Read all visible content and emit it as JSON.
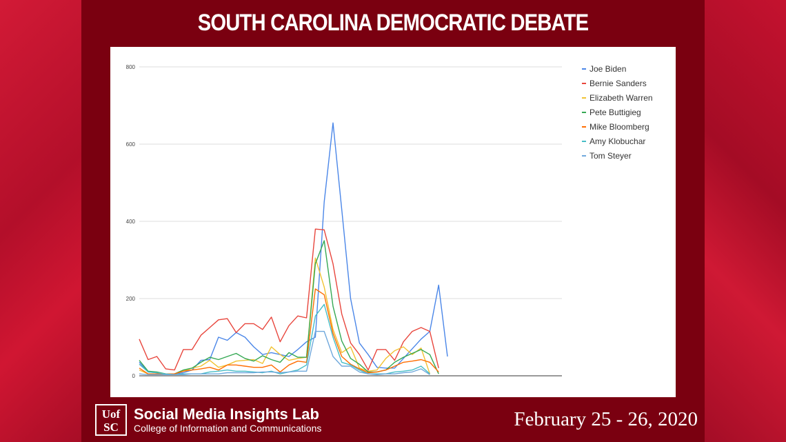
{
  "header": {
    "title": "SOUTH CAROLINA DEMOCRATIC DEBATE"
  },
  "footer": {
    "logo_text": "UofSC",
    "lab_name": "Social Media Insights Lab",
    "lab_subtitle": "College of Information and Communications",
    "date": "February 25 - 26, 2020"
  },
  "chart_data": {
    "type": "line",
    "title": "",
    "xlabel": "",
    "ylabel": "",
    "ylim": [
      0,
      800
    ],
    "yticks": [
      0,
      200,
      400,
      600,
      800
    ],
    "grid": true,
    "legend_position": "right",
    "x": [
      1,
      2,
      3,
      4,
      5,
      6,
      7,
      8,
      9,
      10,
      11,
      12,
      13,
      14,
      15,
      16,
      17,
      18,
      19,
      20,
      21,
      22,
      23,
      24,
      25,
      26,
      27,
      28,
      29,
      30,
      31,
      32,
      33,
      34,
      35,
      36,
      37,
      38,
      39,
      40,
      41,
      42,
      43,
      44,
      45,
      46,
      47,
      48,
      49
    ],
    "series": [
      {
        "name": "Joe Biden",
        "color": "#4a86e8",
        "values": [
          35,
          10,
          8,
          5,
          5,
          8,
          15,
          40,
          42,
          100,
          92,
          112,
          100,
          75,
          55,
          60,
          55,
          50,
          68,
          88,
          100,
          450,
          655,
          430,
          200,
          85,
          55,
          22,
          20,
          20,
          45,
          70,
          95,
          115,
          235,
          50,
          null,
          null,
          null,
          null,
          null,
          null,
          null,
          null,
          null,
          null,
          null,
          null,
          null
        ]
      },
      {
        "name": "Bernie Sanders",
        "color": "#e8453c",
        "values": [
          95,
          42,
          50,
          18,
          15,
          68,
          68,
          105,
          125,
          145,
          148,
          112,
          135,
          135,
          120,
          152,
          88,
          130,
          155,
          150,
          380,
          378,
          290,
          160,
          85,
          55,
          15,
          68,
          68,
          40,
          88,
          115,
          125,
          115,
          20,
          null,
          null,
          null,
          null,
          null,
          null,
          null,
          null,
          null,
          null,
          null,
          null,
          null,
          null
        ]
      },
      {
        "name": "Elizabeth Warren",
        "color": "#f1c232",
        "values": [
          15,
          5,
          5,
          5,
          5,
          12,
          20,
          25,
          40,
          22,
          28,
          38,
          40,
          42,
          32,
          75,
          55,
          40,
          45,
          48,
          305,
          230,
          120,
          60,
          75,
          20,
          12,
          15,
          45,
          65,
          75,
          55,
          72,
          5,
          null,
          null,
          null,
          null,
          null,
          null,
          null,
          null,
          null,
          null,
          null,
          null,
          null,
          null,
          null
        ]
      },
      {
        "name": "Pete Buttigieg",
        "color": "#34a853",
        "values": [
          40,
          12,
          10,
          5,
          5,
          15,
          20,
          35,
          48,
          42,
          50,
          58,
          45,
          38,
          52,
          42,
          35,
          60,
          48,
          48,
          290,
          350,
          180,
          90,
          45,
          30,
          10,
          10,
          15,
          35,
          48,
          58,
          68,
          55,
          5,
          null,
          null,
          null,
          null,
          null,
          null,
          null,
          null,
          null,
          null,
          null,
          null,
          null,
          null
        ]
      },
      {
        "name": "Mike Bloomberg",
        "color": "#ff6d01",
        "values": [
          20,
          5,
          5,
          5,
          5,
          12,
          15,
          18,
          22,
          15,
          28,
          28,
          25,
          22,
          22,
          28,
          10,
          28,
          38,
          35,
          225,
          210,
          110,
          50,
          30,
          18,
          8,
          10,
          15,
          25,
          35,
          38,
          42,
          35,
          10,
          null,
          null,
          null,
          null,
          null,
          null,
          null,
          null,
          null,
          null,
          null,
          null,
          null,
          null
        ]
      },
      {
        "name": "Amy Klobuchar",
        "color": "#46bdc6",
        "values": [
          30,
          10,
          8,
          5,
          3,
          5,
          5,
          5,
          10,
          12,
          15,
          12,
          12,
          10,
          8,
          12,
          5,
          10,
          15,
          28,
          155,
          185,
          100,
          35,
          28,
          15,
          5,
          5,
          5,
          10,
          12,
          15,
          25,
          5,
          null,
          null,
          null,
          null,
          null,
          null,
          null,
          null,
          null,
          null,
          null,
          null,
          null,
          null,
          null
        ]
      },
      {
        "name": "Tom Steyer",
        "color": "#6fa8dc",
        "values": [
          5,
          3,
          3,
          3,
          3,
          3,
          5,
          5,
          5,
          5,
          8,
          8,
          8,
          8,
          10,
          10,
          8,
          10,
          12,
          12,
          115,
          115,
          50,
          25,
          25,
          10,
          5,
          3,
          5,
          5,
          8,
          10,
          18,
          3,
          null,
          null,
          null,
          null,
          null,
          null,
          null,
          null,
          null,
          null,
          null,
          null,
          null,
          null,
          null
        ]
      }
    ]
  }
}
